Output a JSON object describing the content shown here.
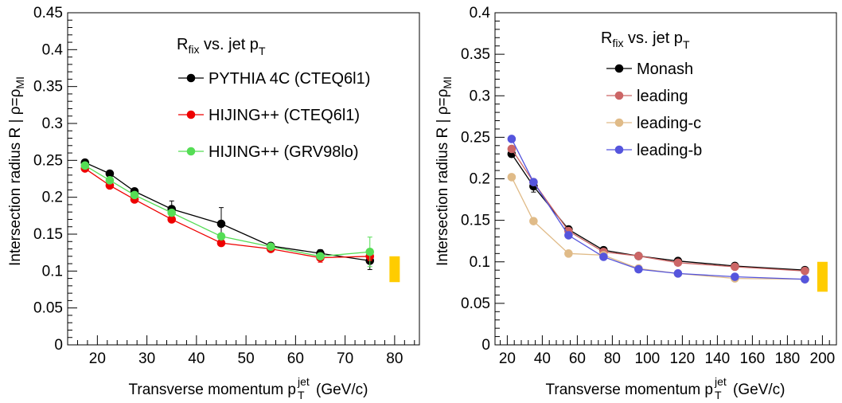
{
  "chart_data": [
    {
      "type": "line",
      "xlabel": {
        "main": "Transverse momentum p",
        "sup": "jet",
        "sub": "T",
        "tail": "  (GeV/c)"
      },
      "ylabel": {
        "main": "Intersection radius R | ρ=ρ",
        "sub": "MI"
      },
      "xlim": [
        14,
        85
      ],
      "ylim": [
        0,
        0.45
      ],
      "xticks": [
        "20",
        "30",
        "40",
        "50",
        "60",
        "70",
        "80"
      ],
      "yticks": [
        "0",
        "0.05",
        "0.1",
        "0.15",
        "0.2",
        "0.25",
        "0.3",
        "0.35",
        "0.4",
        "0.45"
      ],
      "legend": {
        "title_main": "R",
        "title_sub": "fix",
        "title_mid": " vs. jet p",
        "title_sub2": "T",
        "position": "top-right"
      },
      "band": {
        "x": 80,
        "ymin": 0.085,
        "ymax": 0.12,
        "color": "#ffcc00"
      },
      "series": [
        {
          "name": "PYTHIA 4C (CTEQ6l1)",
          "color": "#000000",
          "x": [
            17.5,
            22.5,
            27.5,
            35,
            45,
            55,
            65,
            75
          ],
          "y": [
            0.247,
            0.232,
            0.208,
            0.184,
            0.164,
            0.134,
            0.124,
            0.114
          ],
          "err": [
            0.003,
            0.003,
            0.004,
            0.011,
            0.022,
            0.004,
            0.005,
            0.012
          ]
        },
        {
          "name": "HIJING++ (CTEQ6l1)",
          "color": "#ee0000",
          "x": [
            17.5,
            22.5,
            27.5,
            35,
            45,
            55,
            65,
            75
          ],
          "y": [
            0.239,
            0.216,
            0.197,
            0.17,
            0.138,
            0.13,
            0.118,
            0.12
          ],
          "err": [
            0.002,
            0.002,
            0.002,
            0.002,
            0.003,
            0.003,
            0.006,
            0.006
          ]
        },
        {
          "name": "HIJING++ (GRV98lo)",
          "color": "#55dd55",
          "x": [
            17.5,
            22.5,
            27.5,
            35,
            45,
            55,
            65,
            75
          ],
          "y": [
            0.243,
            0.223,
            0.203,
            0.179,
            0.147,
            0.133,
            0.12,
            0.126
          ],
          "err": [
            0.002,
            0.002,
            0.002,
            0.002,
            0.003,
            0.003,
            0.004,
            0.02
          ]
        }
      ]
    },
    {
      "type": "line",
      "xlabel": {
        "main": "Transverse momentum p",
        "sup": "jet",
        "sub": "T",
        "tail": "  (GeV/c)"
      },
      "ylabel": {
        "main": "Intersection radius R | ρ=ρ",
        "sub": "MI"
      },
      "xlim": [
        13,
        208
      ],
      "ylim": [
        0,
        0.4
      ],
      "xticks": [
        "20",
        "40",
        "60",
        "80",
        "100",
        "120",
        "140",
        "160",
        "180",
        "200"
      ],
      "yticks": [
        "0",
        "0.05",
        "0.1",
        "0.15",
        "0.2",
        "0.25",
        "0.3",
        "0.35",
        "0.4"
      ],
      "legend": {
        "title_main": "R",
        "title_sub": "fix",
        "title_mid": " vs. jet p",
        "title_sub2": "T",
        "position": "top-right"
      },
      "band": {
        "x": 200,
        "ymin": 0.064,
        "ymax": 0.1,
        "color": "#ffcc00"
      },
      "series": [
        {
          "name": "Monash",
          "color": "#000000",
          "x": [
            22.5,
            35,
            55,
            75,
            95,
            117.5,
            150,
            190
          ],
          "y": [
            0.23,
            0.191,
            0.139,
            0.114,
            0.107,
            0.101,
            0.095,
            0.09
          ],
          "err": [
            0.004,
            0.007,
            0.003,
            0.002,
            0.002,
            0.002,
            0.002,
            0.002
          ]
        },
        {
          "name": "leading",
          "color": "#cc6666",
          "x": [
            22.5,
            35,
            55,
            75,
            95,
            117.5,
            150,
            190
          ],
          "y": [
            0.236,
            0.196,
            0.137,
            0.112,
            0.107,
            0.099,
            0.094,
            0.089
          ],
          "err": [
            0.002,
            0.002,
            0.002,
            0.002,
            0.002,
            0.002,
            0.002,
            0.002
          ]
        },
        {
          "name": "leading-c",
          "color": "#e0bb88",
          "x": [
            22.5,
            35,
            55,
            75,
            95,
            117.5,
            150,
            190
          ],
          "y": [
            0.202,
            0.149,
            0.11,
            0.108,
            0.092,
            0.086,
            0.08,
            0.079
          ],
          "err": [
            0.002,
            0.002,
            0.002,
            0.002,
            0.002,
            0.002,
            0.002,
            0.002
          ]
        },
        {
          "name": "leading-b",
          "color": "#5555dd",
          "x": [
            22.5,
            35,
            55,
            75,
            95,
            117.5,
            150,
            190
          ],
          "y": [
            0.248,
            0.196,
            0.132,
            0.106,
            0.091,
            0.086,
            0.082,
            0.079
          ],
          "err": [
            0.002,
            0.002,
            0.002,
            0.002,
            0.002,
            0.002,
            0.002,
            0.002
          ]
        }
      ]
    }
  ]
}
